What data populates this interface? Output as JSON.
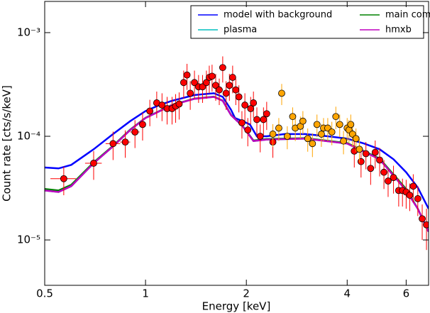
{
  "chart_data": {
    "type": "spectrum",
    "x_label": "Energy [keV]",
    "y_label": "Count rate [cts/s/keV]",
    "xlim": [
      0.5,
      7.0
    ],
    "ylim": [
      3.65e-06,
      0.002
    ],
    "xscale": "log",
    "yscale": "log",
    "xticks": [
      0.5,
      1,
      2,
      4,
      6
    ],
    "yticks": [
      {
        "value": 0.001,
        "label": "10⁻³"
      },
      {
        "value": 0.0001,
        "label": "10⁻⁴"
      },
      {
        "value": 1e-05,
        "label": "10⁻⁵"
      }
    ],
    "legend": "upper right",
    "series": [
      {
        "name": "model with background",
        "color": "#0000ff",
        "x": [
          0.5,
          0.55,
          0.6,
          0.7,
          0.8,
          0.9,
          1.0,
          1.1,
          1.2,
          1.4,
          1.6,
          1.7,
          1.8,
          1.85,
          1.95,
          2.05,
          2.15,
          2.3,
          2.6,
          3.0,
          3.5,
          4.0,
          4.5,
          5.0,
          5.5,
          6.0,
          6.5,
          7.0
        ],
        "values": [
          5e-05,
          4.9e-05,
          5.3e-05,
          7.5e-05,
          0.000105,
          0.00014,
          0.000175,
          0.0002,
          0.00022,
          0.00025,
          0.00026,
          0.00024,
          0.00018,
          0.00015,
          0.00014,
          0.00013,
          0.0001,
          0.0001,
          0.000105,
          0.000105,
          0.0001,
          9.5e-05,
          8.5e-05,
          7.5e-05,
          6e-05,
          4.5e-05,
          3.2e-05,
          2e-05
        ]
      },
      {
        "name": "main component",
        "color": "#008000",
        "x": [
          0.5,
          0.55,
          0.6,
          0.7,
          0.8,
          0.9,
          1.0,
          1.2,
          1.4,
          1.6,
          1.7,
          1.8,
          1.95,
          2.1,
          2.3,
          3.0,
          4.0,
          5.0,
          6.0,
          6.5,
          7.0
        ],
        "values": [
          3.1e-05,
          3e-05,
          3.4e-05,
          5.6e-05,
          8.1e-05,
          0.000116,
          0.000151,
          0.000201,
          0.000231,
          0.000241,
          0.000221,
          0.000161,
          0.000126,
          9.1e-05,
          9.4e-05,
          9.6e-05,
          8.6e-05,
          6.1e-05,
          3.1e-05,
          2e-05,
          1.2e-05
        ]
      },
      {
        "name": "plasma",
        "color": "#00bfbf",
        "x": [
          0.5,
          0.55,
          0.6,
          0.7,
          0.8,
          0.9,
          1.0,
          1.2,
          1.4,
          1.6,
          1.7,
          1.8,
          1.95,
          2.1,
          2.3,
          3.0,
          4.0,
          5.0,
          6.0,
          6.5,
          7.0
        ],
        "values": [
          3e-05,
          2.9e-05,
          3.3e-05,
          5.5e-05,
          8e-05,
          0.000115,
          0.00015,
          0.0002,
          0.00023,
          0.00024,
          0.00022,
          0.00016,
          0.000125,
          9e-05,
          9.3e-05,
          9.5e-05,
          8.5e-05,
          6e-05,
          3e-05,
          2e-05,
          1.2e-05
        ]
      },
      {
        "name": "hmxb",
        "color": "#bf00bf",
        "x": [
          0.5,
          0.55,
          0.6,
          0.7,
          0.8,
          0.9,
          1.0,
          1.2,
          1.4,
          1.6,
          1.7,
          1.8,
          1.95,
          2.1,
          2.3,
          3.0,
          4.0,
          5.0,
          6.0,
          6.5,
          7.0
        ],
        "values": [
          3e-05,
          2.9e-05,
          3.3e-05,
          5.5e-05,
          8e-05,
          0.000115,
          0.00015,
          0.0002,
          0.00023,
          0.00024,
          0.00022,
          0.00016,
          0.000125,
          9e-05,
          9.3e-05,
          9.5e-05,
          8.5e-05,
          6e-05,
          3e-05,
          2e-05,
          1.2e-05
        ]
      }
    ],
    "data_points": [
      {
        "color": "#ff0000",
        "x": [
          0.57,
          0.7,
          0.8,
          0.87,
          0.93,
          0.98,
          1.03,
          1.08,
          1.12,
          1.16,
          1.2,
          1.23,
          1.26,
          1.3,
          1.33,
          1.36,
          1.4,
          1.44,
          1.48,
          1.52,
          1.55,
          1.58,
          1.62,
          1.66,
          1.7,
          1.74,
          1.78,
          1.82,
          1.86,
          1.9,
          1.94,
          1.98,
          2.02,
          2.06,
          2.1,
          2.15,
          2.2,
          2.25,
          2.3,
          2.4,
          4.2,
          4.4,
          4.55,
          4.7,
          4.85,
          5.0,
          5.15,
          5.3,
          5.5,
          5.7,
          5.85,
          6.0,
          6.15,
          6.3,
          6.5,
          6.7,
          6.9
        ],
        "values": [
          3.9e-05,
          5.5e-05,
          8.5e-05,
          8.8e-05,
          0.00011,
          0.00013,
          0.000175,
          0.00021,
          0.0002,
          0.000185,
          0.000185,
          0.000195,
          0.000205,
          0.00033,
          0.00039,
          0.00026,
          0.00033,
          0.0003,
          0.0003,
          0.00033,
          0.00037,
          0.00038,
          0.00031,
          0.00028,
          0.00046,
          0.00026,
          0.00031,
          0.00037,
          0.00028,
          0.00024,
          0.000135,
          0.0002,
          0.000115,
          0.000185,
          0.00021,
          0.000145,
          0.0001,
          0.000145,
          0.000165,
          8.8e-05,
          7.2e-05,
          5.7e-05,
          6.8e-05,
          4.9e-05,
          7e-05,
          5.9e-05,
          4.5e-05,
          3.7e-05,
          4e-05,
          3e-05,
          3e-05,
          2.9e-05,
          2.7e-05,
          3.3e-05,
          2.5e-05,
          1.6e-05,
          1.4e-05
        ],
        "yerr": [
          1.2e-05,
          1.7e-05,
          2.6e-05,
          2.6e-05,
          3.3e-05,
          3.9e-05,
          5e-05,
          6e-05,
          6e-05,
          5.5e-05,
          5.5e-05,
          6e-05,
          6e-05,
          0.0001,
          0.00011,
          8e-05,
          0.0001,
          9e-05,
          9e-05,
          0.0001,
          0.00011,
          0.00011,
          9e-05,
          8e-05,
          0.00013,
          8e-05,
          9e-05,
          0.00011,
          8e-05,
          7e-05,
          4e-05,
          6e-05,
          3.5e-05,
          5.5e-05,
          6e-05,
          4.5e-05,
          3e-05,
          4.5e-05,
          5e-05,
          2.6e-05,
          2.2e-05,
          1.7e-05,
          2e-05,
          1.5e-05,
          2.1e-05,
          1.8e-05,
          1.4e-05,
          1.1e-05,
          1.2e-05,
          9e-06,
          9e-06,
          9e-06,
          8e-06,
          1e-05,
          8e-06,
          6e-06,
          6e-06
        ],
        "xerr": [
          0.05,
          0.04,
          0.04,
          0.03,
          0.03,
          0.02,
          0.02,
          0.02,
          0.02,
          0.02,
          0.02,
          0.02,
          0.02,
          0.02,
          0.02,
          0.02,
          0.02,
          0.02,
          0.02,
          0.02,
          0.02,
          0.02,
          0.02,
          0.02,
          0.02,
          0.02,
          0.02,
          0.02,
          0.02,
          0.02,
          0.02,
          0.02,
          0.02,
          0.02,
          0.02,
          0.02,
          0.02,
          0.02,
          0.02,
          0.02,
          0.07,
          0.07,
          0.07,
          0.07,
          0.07,
          0.07,
          0.07,
          0.07,
          0.07,
          0.07,
          0.07,
          0.07,
          0.07,
          0.07,
          0.07,
          0.07,
          0.07
        ]
      },
      {
        "color": "#ffa500",
        "x": [
          2.4,
          2.5,
          2.55,
          2.65,
          2.75,
          2.8,
          2.9,
          2.95,
          3.05,
          3.15,
          3.25,
          3.35,
          3.4,
          3.5,
          3.6,
          3.7,
          3.8,
          3.9,
          4.0,
          4.05,
          4.1,
          4.15,
          4.25,
          4.35
        ],
        "values": [
          0.000105,
          0.00012,
          0.00026,
          0.0001,
          0.000155,
          0.00012,
          0.000125,
          0.00014,
          9.5e-05,
          8.5e-05,
          0.00013,
          0.000105,
          0.00012,
          0.00012,
          0.00011,
          0.000155,
          0.00013,
          9e-05,
          0.00012,
          0.000115,
          0.00013,
          0.000105,
          9.5e-05,
          7.5e-05
        ],
        "yerr": [
          2.6e-05,
          3e-05,
          6e-05,
          2.5e-05,
          3.5e-05,
          3e-05,
          3e-05,
          3.5e-05,
          2.4e-05,
          2.2e-05,
          3.2e-05,
          2.6e-05,
          3e-05,
          3e-05,
          2.8e-05,
          3.8e-05,
          3.2e-05,
          2.3e-05,
          3e-05,
          2.9e-05,
          3.2e-05,
          2.6e-05,
          2.4e-05,
          1.9e-05
        ],
        "xerr": [
          0.04,
          0.04,
          0.04,
          0.04,
          0.04,
          0.04,
          0.04,
          0.04,
          0.04,
          0.04,
          0.04,
          0.04,
          0.04,
          0.04,
          0.04,
          0.04,
          0.04,
          0.04,
          0.04,
          0.04,
          0.04,
          0.04,
          0.04,
          0.04
        ]
      }
    ]
  }
}
